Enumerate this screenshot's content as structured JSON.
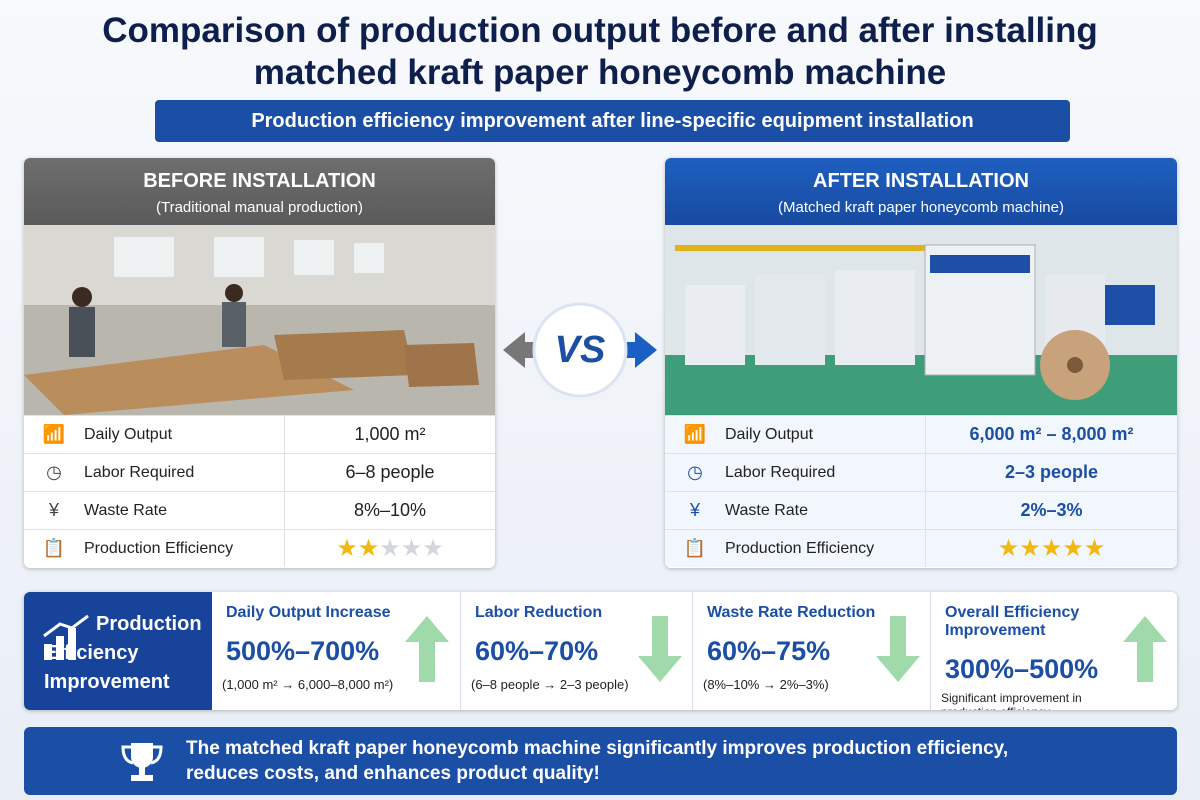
{
  "title": "Comparison of production output before and after installing matched kraft paper honeycomb machine",
  "subtitle": "Production efficiency improvement after line-specific equipment installation",
  "vs": "VS",
  "before": {
    "title": "BEFORE INSTALLATION",
    "subtitle": "(Traditional manual production)",
    "rows": [
      {
        "label": "Daily Output",
        "value": "1,000 m²"
      },
      {
        "label": "Labor Required",
        "value": "6–8 people"
      },
      {
        "label": "Waste Rate",
        "value": "8%–10%"
      },
      {
        "label": "Production Efficiency",
        "rating": 2,
        "rating_scale": 5
      }
    ]
  },
  "after": {
    "title": "AFTER INSTALLATION",
    "subtitle": "(Matched kraft paper honeycomb machine)",
    "rows": [
      {
        "label": "Daily Output",
        "value": "6,000 m² – 8,000 m²"
      },
      {
        "label": "Labor Required",
        "value": "2–3 people"
      },
      {
        "label": "Waste Rate",
        "value": "2%–3%"
      },
      {
        "label": "Production Efficiency",
        "rating": 5,
        "rating_scale": 5
      }
    ]
  },
  "summary": {
    "heading": "Production Efficiency Improvement",
    "items": [
      {
        "label": "Daily Output Increase",
        "value": "500%–700%",
        "detail": "(1,000 m² → 6,000–8,000 m²)"
      },
      {
        "label": "Labor Reduction",
        "value": "60%–70%",
        "detail": "(6–8 people → 2–3 people)"
      },
      {
        "label": "Waste Rate Reduction",
        "value": "60%–75%",
        "detail": "(8%–10% → 2%–3%)"
      },
      {
        "label": "Overall Efficiency Improvement",
        "value": "300%–500%",
        "detail": "Significant improvement in production efficiency"
      }
    ]
  },
  "footer": "The matched kraft paper honeycomb machine significantly improves production efficiency, reduces costs, and enhances product quality!"
}
